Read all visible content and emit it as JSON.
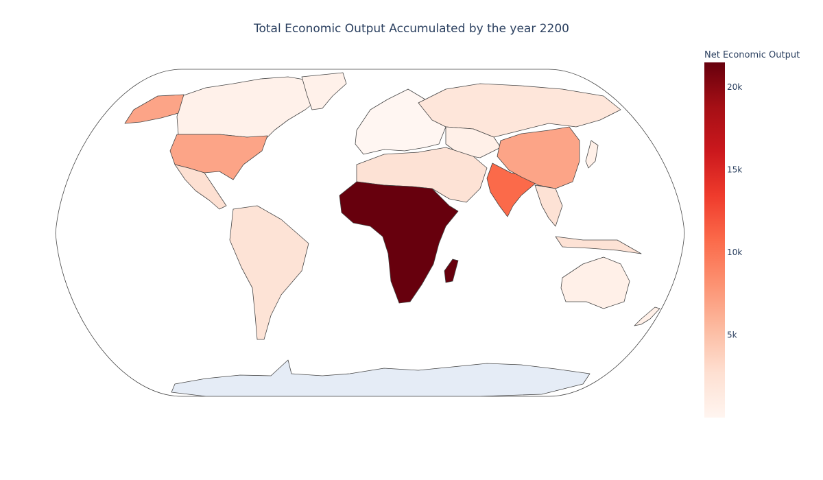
{
  "title": "Total Economic Output Accumulated by the year 2200",
  "colorbar": {
    "title": "Net Economic Output",
    "ticks": [
      {
        "value": 5000,
        "label": "5k"
      },
      {
        "value": 10000,
        "label": "10k"
      },
      {
        "value": 15000,
        "label": "15k"
      },
      {
        "value": 20000,
        "label": "20k"
      }
    ],
    "range": [
      0,
      21500
    ],
    "colorscale": "Reds",
    "colors": [
      "#fff5f0",
      "#fee0d2",
      "#fcbba1",
      "#fc9272",
      "#fb6a4a",
      "#ef3b2c",
      "#cb181d",
      "#a50f15",
      "#67000d"
    ]
  },
  "chart_data": {
    "type": "choropleth",
    "projection": "natural earth",
    "colorscale": "Reds",
    "zrange": [
      0,
      21500
    ],
    "regions": [
      {
        "name": "Sub-Saharan Africa",
        "value": 21500
      },
      {
        "name": "India",
        "value": 11000
      },
      {
        "name": "China",
        "value": 6500
      },
      {
        "name": "United States",
        "value": 6500
      },
      {
        "name": "Alaska",
        "value": 6500
      },
      {
        "name": "Russia",
        "value": 2200
      },
      {
        "name": "Latin America",
        "value": 2200
      },
      {
        "name": "Middle East & North Africa",
        "value": 2200
      },
      {
        "name": "Southeast Asia",
        "value": 2200
      },
      {
        "name": "Australia",
        "value": 1500
      },
      {
        "name": "Europe",
        "value": 600
      },
      {
        "name": "Canada",
        "value": 600
      },
      {
        "name": "Central Asia",
        "value": 1200
      }
    ],
    "antarctica_fill": "#e5ecf6"
  }
}
